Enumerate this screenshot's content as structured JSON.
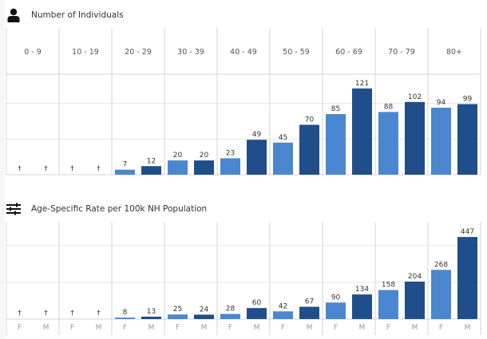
{
  "colors": {
    "female": "#4a87d0",
    "male": "#1f4e8a",
    "grid": "#e6e6e6",
    "divider": "#d4d4d4",
    "label": "#333333",
    "axis_label": "#999999"
  },
  "suppressed_symbol": "†",
  "chart_data": [
    {
      "type": "bar",
      "title": "Number of Individuals",
      "icon": "person-icon",
      "xlabel": "",
      "ylabel": "",
      "categories": [
        "0 - 9",
        "10 - 19",
        "20 - 29",
        "30 - 39",
        "40 - 49",
        "50 - 59",
        "60 - 69",
        "70 - 79",
        "80+"
      ],
      "sub_categories": [
        "F",
        "M"
      ],
      "series": [
        {
          "name": "F",
          "values": [
            null,
            null,
            7,
            20,
            23,
            45,
            85,
            88,
            94
          ]
        },
        {
          "name": "M",
          "values": [
            null,
            null,
            12,
            20,
            49,
            70,
            121,
            102,
            99
          ]
        }
      ],
      "suppressed_label": "†",
      "ylim": [
        0,
        141
      ],
      "gridlines": [
        50,
        100
      ],
      "grid": true,
      "show_sub_axis_labels": false
    },
    {
      "type": "bar",
      "title": "Age-Specific Rate per 100k NH Population",
      "icon": "sliders-icon",
      "xlabel": "",
      "ylabel": "",
      "categories": [
        "0 - 9",
        "10 - 19",
        "20 - 29",
        "30 - 39",
        "40 - 49",
        "50 - 59",
        "60 - 69",
        "70 - 79",
        "80+"
      ],
      "sub_categories": [
        "F",
        "M"
      ],
      "series": [
        {
          "name": "F",
          "values": [
            null,
            null,
            8,
            25,
            28,
            42,
            90,
            158,
            268
          ]
        },
        {
          "name": "M",
          "values": [
            null,
            null,
            13,
            24,
            60,
            67,
            134,
            204,
            447
          ]
        }
      ],
      "suppressed_label": "†",
      "ylim": [
        0,
        530
      ],
      "gridlines": [
        200,
        400
      ],
      "grid": true,
      "show_sub_axis_labels": true
    }
  ]
}
